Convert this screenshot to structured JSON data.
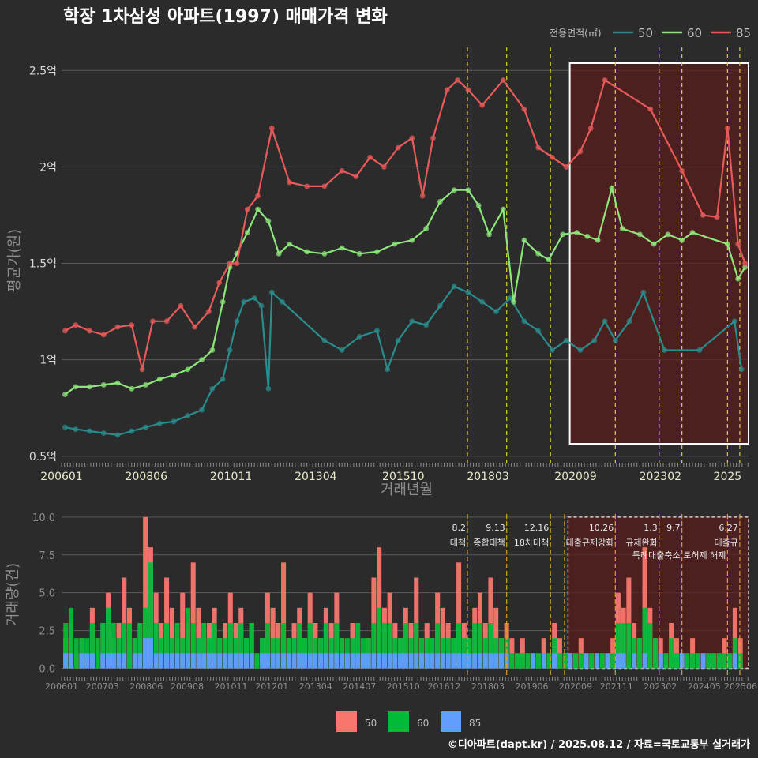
{
  "chart_data": [
    {
      "type": "line",
      "title": "학장 1차삼성 아파트(1997) 매매가격 변화",
      "xlabel": "거래년월",
      "ylabel": "평균가(원)",
      "x_ticks": [
        "200601",
        "200806",
        "201011",
        "201304",
        "201510",
        "201803",
        "202009",
        "202302",
        "2025"
      ],
      "y_ticks": [
        {
          "v": 0.5,
          "label": "0.5억"
        },
        {
          "v": 1,
          "label": "1억"
        },
        {
          "v": 1.5,
          "label": "1.5억"
        },
        {
          "v": 2,
          "label": "2억"
        },
        {
          "v": 2.5,
          "label": "2.5억"
        }
      ],
      "ylim": [
        0.45,
        2.62
      ],
      "xlim": [
        2006.0,
        2025.6
      ],
      "legend_title": "전용면적(㎡)",
      "legend_position": "top-right",
      "grid": true,
      "highlight_range": [
        2020.5,
        2025.6
      ],
      "policy_lines": [
        2017.58,
        2018.7,
        2019.95,
        2021.8,
        2023.05,
        2023.7,
        2025.0,
        2025.35
      ],
      "series": [
        {
          "name": "50",
          "color": "#2a8c8c",
          "points": [
            [
              2006.1,
              0.65
            ],
            [
              2006.4,
              0.64
            ],
            [
              2006.8,
              0.63
            ],
            [
              2007.2,
              0.62
            ],
            [
              2007.6,
              0.61
            ],
            [
              2008.0,
              0.63
            ],
            [
              2008.4,
              0.65
            ],
            [
              2008.8,
              0.67
            ],
            [
              2009.2,
              0.68
            ],
            [
              2009.6,
              0.71
            ],
            [
              2010.0,
              0.74
            ],
            [
              2010.3,
              0.85
            ],
            [
              2010.6,
              0.9
            ],
            [
              2010.8,
              1.05
            ],
            [
              2011.0,
              1.2
            ],
            [
              2011.2,
              1.3
            ],
            [
              2011.5,
              1.32
            ],
            [
              2011.7,
              1.28
            ],
            [
              2011.9,
              0.85
            ],
            [
              2012.0,
              1.35
            ],
            [
              2012.3,
              1.3
            ],
            [
              2013.5,
              1.1
            ],
            [
              2014.0,
              1.05
            ],
            [
              2014.5,
              1.12
            ],
            [
              2015.0,
              1.15
            ],
            [
              2015.3,
              0.95
            ],
            [
              2015.6,
              1.1
            ],
            [
              2016.0,
              1.2
            ],
            [
              2016.4,
              1.18
            ],
            [
              2016.8,
              1.28
            ],
            [
              2017.2,
              1.38
            ],
            [
              2017.6,
              1.35
            ],
            [
              2018.0,
              1.3
            ],
            [
              2018.4,
              1.25
            ],
            [
              2018.8,
              1.32
            ],
            [
              2019.2,
              1.2
            ],
            [
              2019.6,
              1.15
            ],
            [
              2020.0,
              1.05
            ],
            [
              2020.4,
              1.1
            ],
            [
              2020.8,
              1.05
            ],
            [
              2021.2,
              1.1
            ],
            [
              2021.5,
              1.2
            ],
            [
              2021.8,
              1.1
            ],
            [
              2022.2,
              1.2
            ],
            [
              2022.6,
              1.35
            ],
            [
              2023.2,
              1.05
            ],
            [
              2024.2,
              1.05
            ],
            [
              2025.2,
              1.2
            ],
            [
              2025.4,
              0.95
            ]
          ]
        },
        {
          "name": "60",
          "color": "#8ce67a",
          "points": [
            [
              2006.1,
              0.82
            ],
            [
              2006.4,
              0.86
            ],
            [
              2006.8,
              0.86
            ],
            [
              2007.2,
              0.87
            ],
            [
              2007.6,
              0.88
            ],
            [
              2008.0,
              0.85
            ],
            [
              2008.4,
              0.87
            ],
            [
              2008.8,
              0.9
            ],
            [
              2009.2,
              0.92
            ],
            [
              2009.6,
              0.95
            ],
            [
              2010.0,
              1.0
            ],
            [
              2010.3,
              1.05
            ],
            [
              2010.6,
              1.3
            ],
            [
              2010.8,
              1.48
            ],
            [
              2011.0,
              1.55
            ],
            [
              2011.3,
              1.66
            ],
            [
              2011.6,
              1.78
            ],
            [
              2011.9,
              1.72
            ],
            [
              2012.2,
              1.55
            ],
            [
              2012.5,
              1.6
            ],
            [
              2013.0,
              1.56
            ],
            [
              2013.5,
              1.55
            ],
            [
              2014.0,
              1.58
            ],
            [
              2014.5,
              1.55
            ],
            [
              2015.0,
              1.56
            ],
            [
              2015.5,
              1.6
            ],
            [
              2016.0,
              1.62
            ],
            [
              2016.4,
              1.68
            ],
            [
              2016.8,
              1.82
            ],
            [
              2017.2,
              1.88
            ],
            [
              2017.6,
              1.88
            ],
            [
              2017.9,
              1.8
            ],
            [
              2018.2,
              1.65
            ],
            [
              2018.6,
              1.78
            ],
            [
              2018.9,
              1.3
            ],
            [
              2019.2,
              1.62
            ],
            [
              2019.6,
              1.55
            ],
            [
              2019.9,
              1.52
            ],
            [
              2020.3,
              1.65
            ],
            [
              2020.7,
              1.66
            ],
            [
              2021.0,
              1.64
            ],
            [
              2021.3,
              1.62
            ],
            [
              2021.7,
              1.89
            ],
            [
              2022.0,
              1.68
            ],
            [
              2022.5,
              1.65
            ],
            [
              2022.9,
              1.6
            ],
            [
              2023.3,
              1.65
            ],
            [
              2023.7,
              1.62
            ],
            [
              2024.0,
              1.66
            ],
            [
              2025.0,
              1.6
            ],
            [
              2025.3,
              1.42
            ],
            [
              2025.5,
              1.48
            ]
          ]
        },
        {
          "name": "85",
          "color": "#e85a5a",
          "points": [
            [
              2006.1,
              1.15
            ],
            [
              2006.4,
              1.18
            ],
            [
              2006.8,
              1.15
            ],
            [
              2007.2,
              1.13
            ],
            [
              2007.6,
              1.17
            ],
            [
              2008.0,
              1.18
            ],
            [
              2008.3,
              0.95
            ],
            [
              2008.6,
              1.2
            ],
            [
              2009.0,
              1.2
            ],
            [
              2009.4,
              1.28
            ],
            [
              2009.8,
              1.17
            ],
            [
              2010.2,
              1.25
            ],
            [
              2010.5,
              1.4
            ],
            [
              2010.8,
              1.5
            ],
            [
              2011.0,
              1.5
            ],
            [
              2011.3,
              1.78
            ],
            [
              2011.6,
              1.85
            ],
            [
              2012.0,
              2.2
            ],
            [
              2012.5,
              1.92
            ],
            [
              2013.0,
              1.9
            ],
            [
              2013.5,
              1.9
            ],
            [
              2014.0,
              1.98
            ],
            [
              2014.4,
              1.95
            ],
            [
              2014.8,
              2.05
            ],
            [
              2015.2,
              2.0
            ],
            [
              2015.6,
              2.1
            ],
            [
              2016.0,
              2.15
            ],
            [
              2016.3,
              1.85
            ],
            [
              2016.6,
              2.15
            ],
            [
              2017.0,
              2.4
            ],
            [
              2017.3,
              2.45
            ],
            [
              2017.6,
              2.4
            ],
            [
              2018.0,
              2.32
            ],
            [
              2018.6,
              2.45
            ],
            [
              2019.2,
              2.3
            ],
            [
              2019.6,
              2.1
            ],
            [
              2020.0,
              2.05
            ],
            [
              2020.4,
              2.0
            ],
            [
              2020.8,
              2.08
            ],
            [
              2021.1,
              2.2
            ],
            [
              2021.5,
              2.45
            ],
            [
              2022.8,
              2.3
            ],
            [
              2023.7,
              1.98
            ],
            [
              2024.3,
              1.75
            ],
            [
              2024.7,
              1.74
            ],
            [
              2025.0,
              2.2
            ],
            [
              2025.3,
              1.6
            ],
            [
              2025.5,
              1.5
            ]
          ]
        }
      ]
    },
    {
      "type": "bar",
      "xlabel": "",
      "ylabel": "거래량(건)",
      "x_ticks": [
        "200601",
        "200703",
        "200806",
        "200908",
        "201011",
        "201201",
        "201304",
        "201407",
        "201510",
        "201612",
        "201803",
        "201906",
        "202009",
        "202111",
        "202302",
        "202405",
        "202506"
      ],
      "y_ticks": [
        {
          "v": 0,
          "label": "0.0"
        },
        {
          "v": 2.5,
          "label": "2.5"
        },
        {
          "v": 5,
          "label": "5.0"
        },
        {
          "v": 7.5,
          "label": "7.5"
        },
        {
          "v": 10,
          "label": "10.0"
        }
      ],
      "ylim": [
        -0.6,
        10.2
      ],
      "xlim": [
        2006.0,
        2025.6
      ],
      "highlight_range": [
        2020.45,
        2025.6
      ],
      "legend_position": "bottom",
      "legend": [
        {
          "name": "50",
          "color": "#f8766d"
        },
        {
          "name": "60",
          "color": "#00ba38"
        },
        {
          "name": "85",
          "color": "#619cff"
        }
      ],
      "series_counts": {
        "50": [
          2,
          3,
          1,
          2,
          1,
          4,
          2,
          3,
          5,
          2,
          3,
          6,
          4,
          2,
          3,
          10,
          8,
          5,
          3,
          6,
          4,
          2,
          5,
          3,
          7,
          4,
          2,
          3,
          4,
          2,
          3,
          5,
          3,
          4,
          2,
          3,
          1,
          2,
          5,
          4,
          3,
          7,
          2,
          3,
          4,
          2,
          5,
          3,
          2,
          4,
          3,
          5,
          2,
          1,
          3,
          2,
          1,
          2,
          6,
          8,
          4,
          5,
          3,
          2,
          4,
          3,
          6,
          2,
          3,
          2,
          5,
          4,
          3,
          2,
          7,
          3,
          2,
          4,
          5,
          3,
          6,
          4,
          2,
          3,
          2,
          1,
          2,
          1,
          1,
          1,
          2,
          1,
          3,
          2,
          1,
          1,
          1,
          2,
          1,
          1,
          1,
          1,
          1,
          2,
          5,
          4,
          6,
          3,
          2,
          8,
          4,
          2,
          2,
          1,
          3,
          2,
          1,
          1,
          2,
          1,
          1,
          1,
          1,
          1,
          2,
          1,
          4,
          2
        ],
        "60": [
          3,
          4,
          2,
          2,
          2,
          3,
          2,
          3,
          4,
          3,
          2,
          3,
          3,
          2,
          3,
          4,
          7,
          3,
          2,
          3,
          2,
          3,
          2,
          4,
          3,
          2,
          3,
          2,
          3,
          2,
          2,
          3,
          2,
          3,
          2,
          3,
          1,
          2,
          3,
          2,
          2,
          3,
          2,
          2,
          3,
          2,
          3,
          2,
          2,
          3,
          2,
          3,
          2,
          2,
          2,
          3,
          2,
          2,
          3,
          4,
          3,
          3,
          2,
          2,
          3,
          2,
          3,
          2,
          2,
          2,
          3,
          2,
          2,
          2,
          3,
          2,
          2,
          3,
          3,
          2,
          3,
          2,
          2,
          2,
          1,
          1,
          1,
          1,
          1,
          1,
          1,
          1,
          2,
          1,
          1,
          1,
          1,
          1,
          1,
          1,
          1,
          1,
          1,
          1,
          3,
          3,
          3,
          2,
          2,
          4,
          3,
          2,
          1,
          1,
          2,
          1,
          1,
          1,
          1,
          1,
          1,
          1,
          1,
          1,
          1,
          1,
          2,
          1
        ],
        "85": [
          1,
          1,
          0,
          1,
          1,
          1,
          0,
          1,
          1,
          1,
          1,
          1,
          0,
          1,
          1,
          2,
          2,
          1,
          1,
          1,
          1,
          1,
          1,
          1,
          1,
          1,
          1,
          1,
          1,
          1,
          1,
          1,
          1,
          1,
          1,
          1,
          0,
          1,
          1,
          1,
          1,
          1,
          1,
          1,
          1,
          1,
          1,
          1,
          1,
          1,
          1,
          1,
          1,
          1,
          1,
          1,
          1,
          1,
          1,
          1,
          1,
          1,
          1,
          1,
          1,
          1,
          1,
          1,
          1,
          1,
          1,
          1,
          1,
          1,
          1,
          1,
          1,
          1,
          1,
          1,
          1,
          1,
          1,
          1,
          0,
          0,
          0,
          0,
          1,
          0,
          1,
          0,
          1,
          0,
          0,
          1,
          0,
          0,
          1,
          0,
          1,
          0,
          1,
          0,
          1,
          1,
          0,
          1,
          0,
          1,
          0,
          0,
          1,
          0,
          0,
          0,
          1,
          0,
          0,
          0,
          1,
          0,
          0,
          0,
          0,
          0,
          1,
          0
        ]
      },
      "policy_lines": [
        {
          "x": 2017.58,
          "date": "8.2",
          "label": "대책"
        },
        {
          "x": 2018.7,
          "date": "9.13",
          "label": "종합대책"
        },
        {
          "x": 2019.95,
          "date": "12.16",
          "label": "18차대책"
        },
        {
          "x": 2020.35,
          "date": "",
          "label": ""
        },
        {
          "x": 2021.8,
          "date": "10.26",
          "label": "대출규제강화"
        },
        {
          "x": 2023.05,
          "date": "1.3",
          "label": "규제완화"
        },
        {
          "x": 2023.7,
          "date": "9.7",
          "label": "특례대출축소"
        },
        {
          "x": 2025.0,
          "date": "",
          "label": "토허제 해제"
        },
        {
          "x": 2025.35,
          "date": "6.27",
          "label": "대출규"
        }
      ]
    }
  ],
  "caption": "©디아파트(dapt.kr) / 2025.08.12 / 자료=국토교통부 실거래가"
}
